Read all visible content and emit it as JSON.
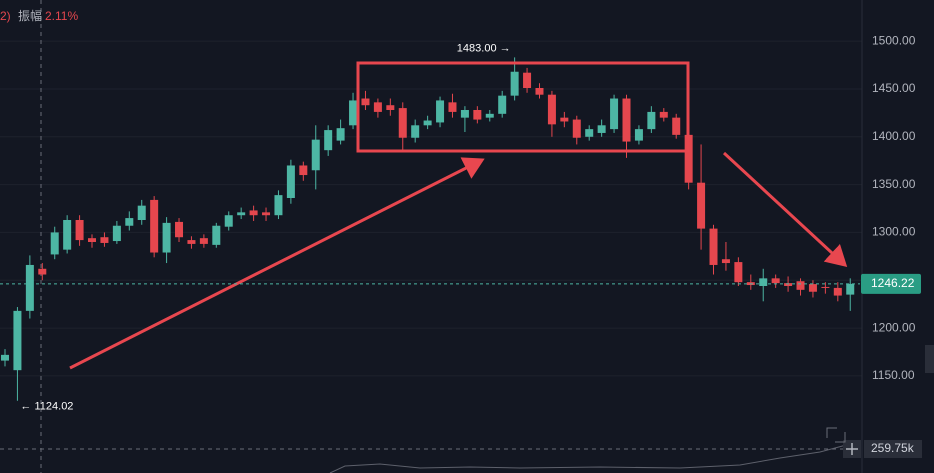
{
  "header": {
    "prefix": "2)",
    "amplitude_label": "振幅",
    "amplitude": "2.11%"
  },
  "chart_data": {
    "type": "candlestick",
    "up_color": "#4db6a4",
    "down_color": "#e5474e",
    "grid": true,
    "ylim": [
      1083,
      1543
    ],
    "yticks": [
      {
        "value": 1150,
        "label": "1150.00"
      },
      {
        "value": 1200,
        "label": "1200.00"
      },
      {
        "value": 1250,
        "label": "1250.00"
      },
      {
        "value": 1300,
        "label": "1300.00"
      },
      {
        "value": 1350,
        "label": "1350.00"
      },
      {
        "value": 1400,
        "label": "1400.00"
      },
      {
        "value": 1450,
        "label": "1450.00"
      },
      {
        "value": 1500,
        "label": "1500.00"
      }
    ],
    "open": [
      1166,
      1156,
      1218,
      1262,
      1277,
      1282,
      1313,
      1294,
      1295,
      1291,
      1307,
      1313,
      1334,
      1279,
      1311,
      1292,
      1294,
      1287,
      1306,
      1318,
      1323,
      1321,
      1318,
      1336,
      1370,
      1365,
      1386,
      1396,
      1412,
      1440,
      1436,
      1433,
      1430,
      1399,
      1412,
      1415,
      1436,
      1420,
      1428,
      1420,
      1424,
      1443,
      1467,
      1451,
      1444,
      1420,
      1418,
      1400,
      1404,
      1408,
      1440,
      1396,
      1408,
      1426,
      1420,
      1402,
      1352,
      1304,
      1272,
      1269,
      1248,
      1244,
      1252,
      1247,
      1249,
      1246,
      1243,
      1242,
      1235
    ],
    "high": [
      1178,
      1222,
      1276,
      1268,
      1306,
      1318,
      1318,
      1298,
      1300,
      1312,
      1322,
      1334,
      1338,
      1316,
      1315,
      1296,
      1298,
      1310,
      1322,
      1326,
      1328,
      1326,
      1344,
      1376,
      1374,
      1412,
      1412,
      1418,
      1446,
      1448,
      1440,
      1440,
      1436,
      1418,
      1422,
      1442,
      1445,
      1432,
      1432,
      1428,
      1448,
      1483.0,
      1472,
      1456,
      1448,
      1426,
      1422,
      1412,
      1418,
      1444,
      1444,
      1412,
      1432,
      1430,
      1424,
      1404,
      1392,
      1308,
      1290,
      1274,
      1256,
      1262,
      1256,
      1254,
      1252,
      1250,
      1248,
      1248,
      1252
    ],
    "low": [
      1160,
      1124.02,
      1210,
      1250,
      1272,
      1278,
      1286,
      1284,
      1285,
      1288,
      1302,
      1308,
      1274,
      1268,
      1290,
      1283,
      1284,
      1284,
      1302,
      1314,
      1312,
      1312,
      1314,
      1330,
      1354,
      1345,
      1380,
      1392,
      1408,
      1428,
      1420,
      1422,
      1385,
      1394,
      1408,
      1410,
      1420,
      1405,
      1414,
      1416,
      1420,
      1438,
      1446,
      1440,
      1400,
      1410,
      1392,
      1396,
      1400,
      1404,
      1378,
      1392,
      1404,
      1416,
      1398,
      1345,
      1282,
      1256,
      1260,
      1244,
      1240,
      1228,
      1242,
      1238,
      1234,
      1232,
      1236,
      1228,
      1218
    ],
    "close": [
      1172,
      1218,
      1266,
      1256,
      1300,
      1313,
      1292,
      1290,
      1289,
      1307,
      1315,
      1328,
      1279,
      1310,
      1295,
      1288,
      1288,
      1307,
      1318,
      1321,
      1318,
      1318,
      1339,
      1370,
      1360,
      1397,
      1407,
      1409,
      1438,
      1433,
      1426,
      1428,
      1399,
      1412,
      1417,
      1438,
      1426,
      1428,
      1418,
      1424,
      1443,
      1468,
      1451,
      1444,
      1413,
      1416,
      1399,
      1408,
      1412,
      1440,
      1395,
      1408,
      1426,
      1420,
      1402,
      1352,
      1304,
      1266,
      1268,
      1248,
      1245,
      1252,
      1247,
      1244,
      1240,
      1238,
      1242,
      1234,
      1246.22
    ],
    "max_label": "1483.00 →",
    "min_label": "← 1124.02",
    "last_price": {
      "value": 1246.22,
      "label": "1246.22"
    },
    "volume_label": "259.75k"
  }
}
